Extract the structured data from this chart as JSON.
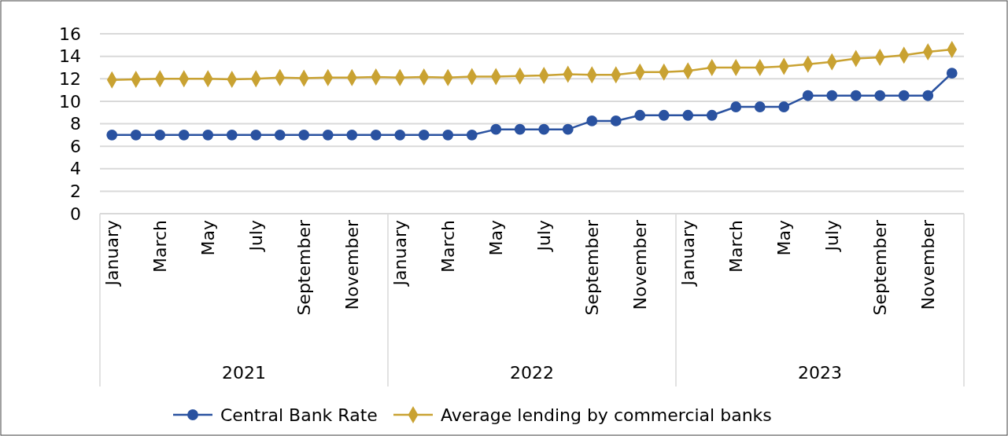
{
  "chart_data": {
    "type": "line",
    "categories": [
      "January",
      null,
      "March",
      null,
      "May",
      null,
      "July",
      null,
      "September",
      null,
      "November",
      null,
      "January",
      null,
      "March",
      null,
      "May",
      null,
      "July",
      null,
      "September",
      null,
      "November",
      null,
      "January",
      null,
      "March",
      null,
      "May",
      null,
      "July",
      null,
      "September",
      null,
      "November",
      null
    ],
    "annotations": [
      "2021",
      "2022",
      "2023"
    ],
    "series": [
      {
        "name": "Central Bank Rate",
        "color": "#2a52a0",
        "marker": "circle",
        "values": [
          7,
          7,
          7,
          7,
          7,
          7,
          7,
          7,
          7,
          7,
          7,
          7,
          7,
          7,
          7,
          7,
          7.5,
          7.5,
          7.5,
          7.5,
          8.25,
          8.25,
          8.75,
          8.75,
          8.75,
          8.75,
          9.5,
          9.5,
          9.5,
          10.5,
          10.5,
          10.5,
          10.5,
          10.5,
          10.5,
          12.5
        ]
      },
      {
        "name": "Average lending by commercial banks",
        "color": "#c9a232",
        "marker": "diamond",
        "values": [
          11.9,
          11.95,
          12,
          12,
          12,
          11.95,
          12,
          12.1,
          12.05,
          12.1,
          12.1,
          12.15,
          12.1,
          12.15,
          12.1,
          12.2,
          12.2,
          12.25,
          12.3,
          12.4,
          12.35,
          12.35,
          12.6,
          12.6,
          12.7,
          13,
          13,
          13,
          13.1,
          13.3,
          13.5,
          13.8,
          13.9,
          14.1,
          14.4,
          14.6
        ]
      }
    ],
    "ylim": [
      0,
      16
    ],
    "yticks": [
      0,
      2,
      4,
      6,
      8,
      10,
      12,
      14,
      16
    ],
    "grid": "y",
    "legend": "bottom"
  }
}
